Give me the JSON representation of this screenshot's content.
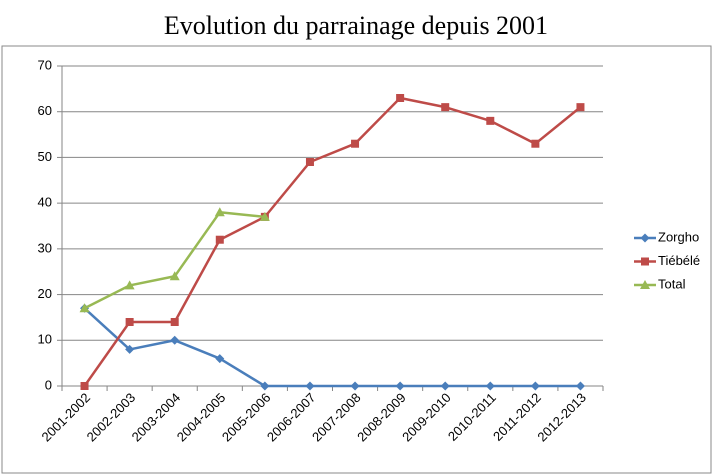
{
  "chart_data": {
    "type": "line",
    "title": "Evolution du parrainage depuis 2001",
    "categories": [
      "2001-2002",
      "2002-2003",
      "2003-2004",
      "2004-2005",
      "2005-2006",
      "2006-2007",
      "2007-2008",
      "2008-2009",
      "2009-2010",
      "2010-2011",
      "2011-2012",
      "2012-2013"
    ],
    "series": [
      {
        "name": "Zorgho",
        "color": "#4a7ebb",
        "marker": "diamond",
        "values": [
          17,
          8,
          10,
          6,
          0,
          0,
          0,
          0,
          0,
          0,
          0,
          0
        ]
      },
      {
        "name": "Tiébélé",
        "color": "#be4b48",
        "marker": "square",
        "values": [
          0,
          14,
          14,
          32,
          37,
          49,
          53,
          63,
          61,
          58,
          53,
          61
        ]
      },
      {
        "name": "Total",
        "color": "#98b954",
        "marker": "triangle",
        "values": [
          17,
          22,
          24,
          38,
          37,
          null,
          null,
          null,
          null,
          null,
          null,
          null
        ]
      }
    ],
    "ylim": [
      0,
      70
    ],
    "yticks": [
      0,
      10,
      20,
      30,
      40,
      50,
      60,
      70
    ],
    "grid": true,
    "legend": "right"
  }
}
